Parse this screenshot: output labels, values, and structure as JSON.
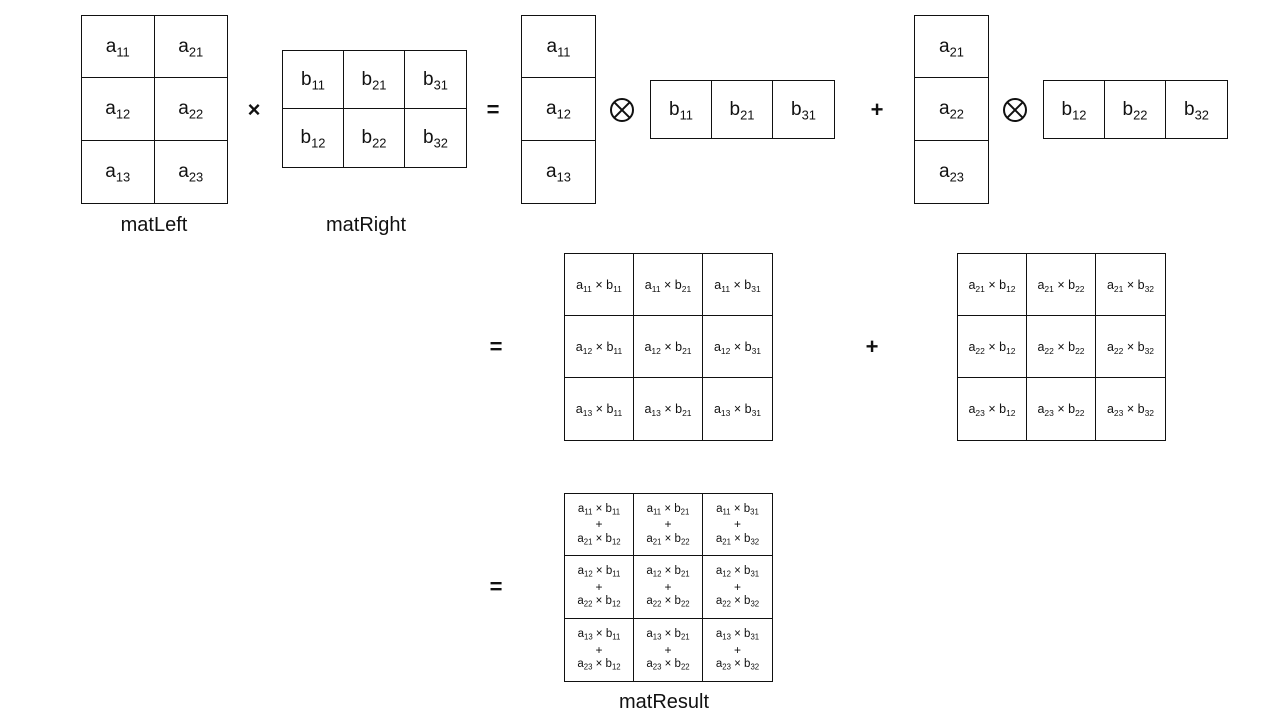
{
  "labels": {
    "left": "matLeft",
    "right": "matRight",
    "result": "matResult"
  },
  "operators": {
    "times": "×",
    "equals": "=",
    "plus": "+",
    "plus_inner": "+",
    "otimes": "outer-product-icon"
  },
  "matLeft": [
    [
      {
        "s": "a",
        "i": "11"
      },
      {
        "s": "a",
        "i": "21"
      }
    ],
    [
      {
        "s": "a",
        "i": "12"
      },
      {
        "s": "a",
        "i": "22"
      }
    ],
    [
      {
        "s": "a",
        "i": "13"
      },
      {
        "s": "a",
        "i": "23"
      }
    ]
  ],
  "matRight": [
    [
      {
        "s": "b",
        "i": "11"
      },
      {
        "s": "b",
        "i": "21"
      },
      {
        "s": "b",
        "i": "31"
      }
    ],
    [
      {
        "s": "b",
        "i": "12"
      },
      {
        "s": "b",
        "i": "22"
      },
      {
        "s": "b",
        "i": "32"
      }
    ]
  ],
  "colA1": [
    [
      {
        "s": "a",
        "i": "11"
      }
    ],
    [
      {
        "s": "a",
        "i": "12"
      }
    ],
    [
      {
        "s": "a",
        "i": "13"
      }
    ]
  ],
  "rowB1": [
    [
      {
        "s": "b",
        "i": "11"
      },
      {
        "s": "b",
        "i": "21"
      },
      {
        "s": "b",
        "i": "31"
      }
    ]
  ],
  "colA2": [
    [
      {
        "s": "a",
        "i": "21"
      }
    ],
    [
      {
        "s": "a",
        "i": "22"
      }
    ],
    [
      {
        "s": "a",
        "i": "23"
      }
    ]
  ],
  "rowB2": [
    [
      {
        "s": "b",
        "i": "12"
      },
      {
        "s": "b",
        "i": "22"
      },
      {
        "s": "b",
        "i": "32"
      }
    ]
  ],
  "outer1": {
    "a_idx": [
      "11",
      "12",
      "13"
    ],
    "b_idx": [
      "11",
      "21",
      "31"
    ]
  },
  "outer2": {
    "a_idx": [
      "21",
      "22",
      "23"
    ],
    "b_idx": [
      "12",
      "22",
      "32"
    ]
  },
  "result": {
    "a1_idx": [
      "11",
      "12",
      "13"
    ],
    "b1_idx": [
      "11",
      "21",
      "31"
    ],
    "a2_idx": [
      "21",
      "22",
      "23"
    ],
    "b2_idx": [
      "12",
      "22",
      "32"
    ]
  },
  "symbols": {
    "a": "a",
    "b": "b",
    "mul": "×"
  }
}
